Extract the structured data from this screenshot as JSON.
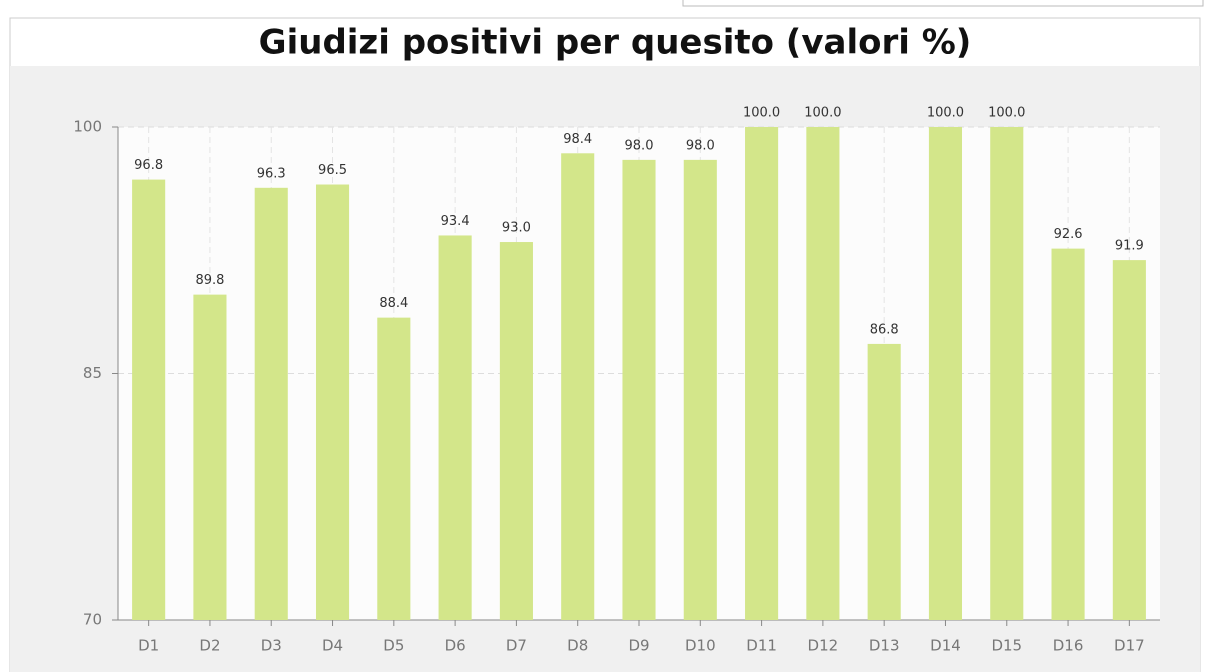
{
  "chart_data": {
    "type": "bar",
    "title": "Giudizi positivi per quesito (valori %)",
    "categories": [
      "D1",
      "D2",
      "D3",
      "D4",
      "D5",
      "D6",
      "D7",
      "D8",
      "D9",
      "D10",
      "D11",
      "D12",
      "D13",
      "D14",
      "D15",
      "D16",
      "D17"
    ],
    "values": [
      96.8,
      89.8,
      96.3,
      96.5,
      88.4,
      93.4,
      93.0,
      98.4,
      98.0,
      98.0,
      100.0,
      100.0,
      86.8,
      100.0,
      100.0,
      92.6,
      91.9
    ],
    "value_labels": [
      "96.8",
      "89.8",
      "96.3",
      "96.5",
      "88.4",
      "93.4",
      "93.0",
      "98.4",
      "98.0",
      "98.0",
      "100.0",
      "100.0",
      "86.8",
      "100.0",
      "100.0",
      "92.6",
      "91.9"
    ],
    "color": "#d3e68a",
    "ylim": [
      70,
      100
    ],
    "yticks": [
      70,
      85,
      100
    ],
    "grid": true
  }
}
